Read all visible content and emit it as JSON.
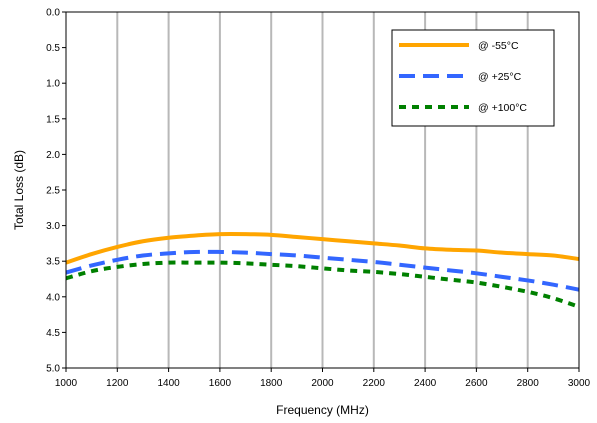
{
  "chart_data": {
    "type": "line",
    "title": "",
    "xlabel": "Frequency (MHz)",
    "ylabel": "Total Loss (dB)",
    "xlim": [
      1000,
      3000
    ],
    "ylim": [
      0.0,
      5.0
    ],
    "y_inverted": true,
    "x_ticks": [
      "1000",
      "1200",
      "1400",
      "1600",
      "1800",
      "2000",
      "2200",
      "2400",
      "2600",
      "2800",
      "3000"
    ],
    "y_ticks": [
      "0.0",
      "0.5",
      "1.0",
      "1.5",
      "2.0",
      "2.5",
      "3.0",
      "3.5",
      "4.0",
      "4.5",
      "5.0"
    ],
    "grid": "vertical",
    "legend_position": "top-right",
    "series": [
      {
        "name": "@ -55°C",
        "color": "#FFA500",
        "style": "solid",
        "x": [
          1000,
          1100,
          1200,
          1300,
          1400,
          1500,
          1600,
          1700,
          1800,
          1900,
          2000,
          2100,
          2200,
          2300,
          2400,
          2500,
          2600,
          2700,
          2800,
          2900,
          3000
        ],
        "y": [
          3.52,
          3.4,
          3.3,
          3.22,
          3.17,
          3.14,
          3.12,
          3.12,
          3.13,
          3.16,
          3.19,
          3.22,
          3.25,
          3.28,
          3.32,
          3.34,
          3.35,
          3.38,
          3.4,
          3.42,
          3.47
        ]
      },
      {
        "name": "@ +25°C",
        "color": "#3366FF",
        "style": "dashed",
        "x": [
          1000,
          1100,
          1200,
          1300,
          1400,
          1500,
          1600,
          1700,
          1800,
          1900,
          2000,
          2100,
          2200,
          2300,
          2400,
          2500,
          2600,
          2700,
          2800,
          2900,
          3000
        ],
        "y": [
          3.66,
          3.56,
          3.48,
          3.42,
          3.39,
          3.37,
          3.37,
          3.38,
          3.4,
          3.42,
          3.45,
          3.48,
          3.51,
          3.55,
          3.59,
          3.63,
          3.67,
          3.72,
          3.77,
          3.83,
          3.9
        ]
      },
      {
        "name": "@ +100°C",
        "color": "#008000",
        "style": "dotted",
        "x": [
          1000,
          1100,
          1200,
          1300,
          1400,
          1500,
          1600,
          1700,
          1800,
          1900,
          2000,
          2100,
          2200,
          2300,
          2400,
          2500,
          2600,
          2700,
          2800,
          2900,
          3000
        ],
        "y": [
          3.74,
          3.64,
          3.58,
          3.54,
          3.52,
          3.52,
          3.52,
          3.53,
          3.55,
          3.57,
          3.6,
          3.63,
          3.65,
          3.68,
          3.72,
          3.76,
          3.8,
          3.86,
          3.93,
          4.02,
          4.14
        ]
      }
    ]
  }
}
